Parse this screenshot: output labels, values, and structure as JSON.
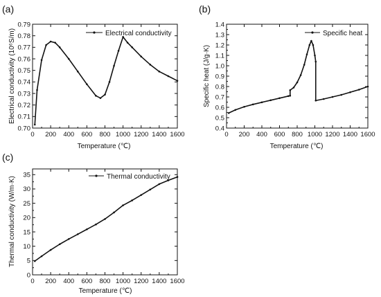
{
  "figure": {
    "panels": [
      "(a)",
      "(b)",
      "(c)"
    ]
  },
  "chart_data": [
    {
      "type": "line",
      "panel": "(a)",
      "xlabel": "Temperature (℃)",
      "ylabel": "Electrical conductivity (10⁶S/m)",
      "xlim": [
        0,
        1600
      ],
      "ylim": [
        0.7,
        0.79
      ],
      "xticks": [
        "0",
        "200",
        "400",
        "600",
        "800",
        "1000",
        "1200",
        "1400",
        "1600"
      ],
      "yticks": [
        "0.70",
        "0.71",
        "0.72",
        "0.73",
        "0.74",
        "0.75",
        "0.76",
        "0.77",
        "0.78",
        "0.79"
      ],
      "legend_position": "top-right",
      "grid": false,
      "series": [
        {
          "name": "Electrical conductivity",
          "x": [
            25,
            50,
            100,
            150,
            200,
            250,
            300,
            400,
            500,
            600,
            700,
            750,
            800,
            850,
            900,
            950,
            1000,
            1050,
            1100,
            1200,
            1300,
            1400,
            1500,
            1600
          ],
          "y": [
            0.703,
            0.733,
            0.759,
            0.772,
            0.775,
            0.774,
            0.77,
            0.76,
            0.749,
            0.738,
            0.728,
            0.726,
            0.729,
            0.74,
            0.754,
            0.767,
            0.779,
            0.774,
            0.77,
            0.762,
            0.755,
            0.749,
            0.745,
            0.741
          ]
        }
      ]
    },
    {
      "type": "line",
      "panel": "(b)",
      "xlabel": "Temperature (℃)",
      "ylabel": "Specific heat (J/g·K)",
      "xlim": [
        0,
        1600
      ],
      "ylim": [
        0.4,
        1.4
      ],
      "xticks": [
        "0",
        "200",
        "400",
        "600",
        "800",
        "1000",
        "1200",
        "1400",
        "1600"
      ],
      "yticks": [
        "0.4",
        "0.5",
        "0.6",
        "0.7",
        "0.8",
        "0.9",
        "1.0",
        "1.1",
        "1.2",
        "1.3",
        "1.4"
      ],
      "legend_position": "top-right",
      "grid": false,
      "series": [
        {
          "name": "Specific heat",
          "x": [
            25,
            100,
            200,
            300,
            400,
            500,
            600,
            700,
            720,
            720,
            760,
            800,
            840,
            880,
            910,
            940,
            960,
            980,
            1000,
            1010,
            1010,
            1100,
            1200,
            1300,
            1400,
            1500,
            1600
          ],
          "y": [
            0.545,
            0.575,
            0.605,
            0.628,
            0.648,
            0.668,
            0.688,
            0.708,
            0.712,
            0.765,
            0.79,
            0.84,
            0.91,
            1.01,
            1.11,
            1.2,
            1.24,
            1.2,
            1.1,
            1.04,
            0.665,
            0.68,
            0.7,
            0.72,
            0.745,
            0.77,
            0.8
          ]
        }
      ]
    },
    {
      "type": "line",
      "panel": "(c)",
      "xlabel": "Temperature (℃)",
      "ylabel": "Thermal conductivity (W/m·K)",
      "xlim": [
        0,
        1600
      ],
      "ylim": [
        0,
        37
      ],
      "xticks": [
        "0",
        "200",
        "400",
        "600",
        "800",
        "1000",
        "1200",
        "1400",
        "1600"
      ],
      "yticks": [
        "0",
        "5",
        "10",
        "15",
        "20",
        "25",
        "30",
        "35"
      ],
      "legend_position": "top-left",
      "grid": false,
      "series": [
        {
          "name": "Thermal conductivity",
          "x": [
            25,
            100,
            200,
            300,
            400,
            500,
            600,
            700,
            800,
            900,
            1000,
            1100,
            1200,
            1300,
            1400,
            1500,
            1600
          ],
          "y": [
            4.8,
            6.5,
            8.7,
            10.7,
            12.5,
            14.2,
            15.9,
            17.6,
            19.5,
            21.8,
            24.3,
            26.0,
            27.9,
            29.8,
            31.7,
            33.0,
            34.2
          ]
        }
      ]
    }
  ]
}
